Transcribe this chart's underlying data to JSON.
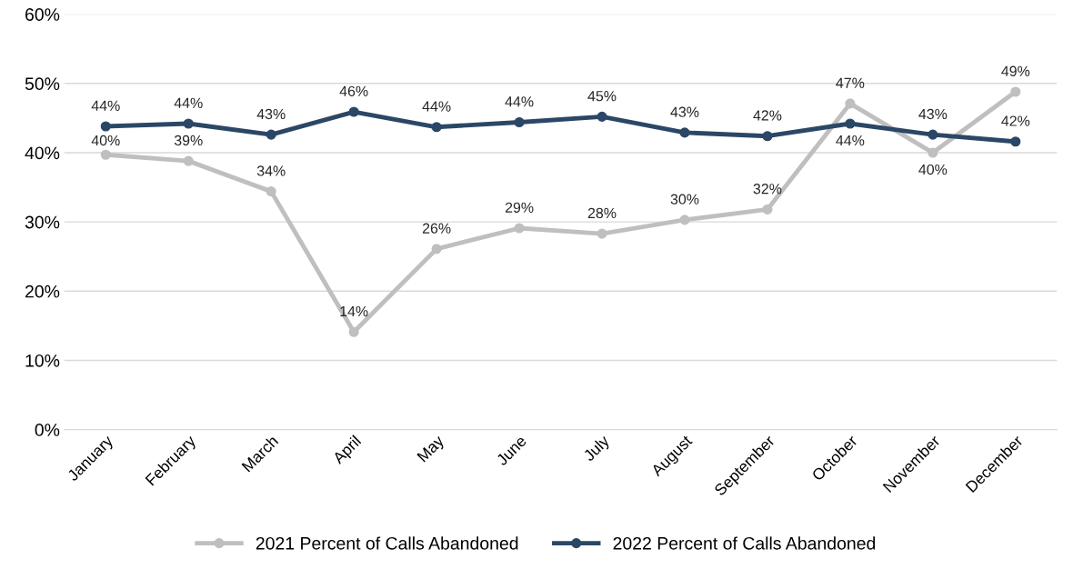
{
  "chart_data": {
    "type": "line",
    "categories": [
      "January",
      "February",
      "March",
      "April",
      "May",
      "June",
      "July",
      "August",
      "September",
      "October",
      "November",
      "December"
    ],
    "series": [
      {
        "name": "2021 Percent of Calls Abandoned",
        "color": "#bfbfbf",
        "values": [
          39.7,
          38.8,
          34.4,
          14.1,
          26.1,
          29.1,
          28.3,
          30.3,
          31.8,
          47.1,
          40.0,
          48.8
        ],
        "value_labels": [
          "40%",
          "39%",
          "34%",
          "14%",
          "26%",
          "29%",
          "28%",
          "30%",
          "32%",
          "47%",
          "40%",
          "49%"
        ]
      },
      {
        "name": "2022 Percent of Calls Abandoned",
        "color": "#2b4766",
        "values": [
          43.8,
          44.2,
          42.6,
          45.9,
          43.7,
          44.4,
          45.2,
          42.9,
          42.4,
          44.2,
          42.6,
          41.6
        ],
        "value_labels": [
          "44%",
          "44%",
          "43%",
          "46%",
          "44%",
          "44%",
          "45%",
          "43%",
          "42%",
          "44%",
          "43%",
          "42%"
        ]
      }
    ],
    "ylim": [
      0,
      60
    ],
    "yticks": [
      {
        "value": 0,
        "label": "0%"
      },
      {
        "value": 10,
        "label": "10%"
      },
      {
        "value": 20,
        "label": "20%"
      },
      {
        "value": 30,
        "label": "30%"
      },
      {
        "value": 40,
        "label": "40%"
      },
      {
        "value": 50,
        "label": "50%"
      },
      {
        "value": 60,
        "label": "60%"
      }
    ],
    "grid": "y",
    "legend": "bottom",
    "marker": "circle",
    "line_style": "solid"
  }
}
